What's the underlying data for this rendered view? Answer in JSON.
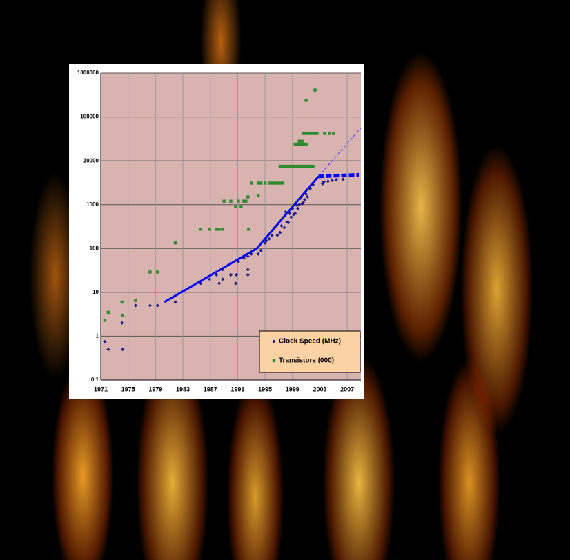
{
  "chart_data": {
    "type": "scatter",
    "log_y": true,
    "grid": true,
    "legend": "lower right",
    "xlim": [
      1971,
      2009
    ],
    "xticks": [
      1971,
      1975,
      1979,
      1983,
      1987,
      1991,
      1995,
      1999,
      2003,
      2007
    ],
    "ylim": [
      0.1,
      1000000
    ],
    "yticks": [
      1000000,
      100000,
      10000,
      1000,
      100,
      10,
      1,
      0.1
    ],
    "series": [
      {
        "name": "Clock Speed (MHz)",
        "color": "#1a1a8c",
        "marker": "diamond",
        "x": [
          1971.6,
          1972.1,
          1974.1,
          1974.2,
          1976.1,
          1978.2,
          1979.3,
          1981.9,
          1985.6,
          1986.9,
          1987.9,
          1988.3,
          1988.8,
          1988.8,
          1990,
          1990.7,
          1990.8,
          1991.1,
          1991.9,
          1992.5,
          1992.5,
          1992.5,
          1993,
          1994,
          1994.4,
          1995,
          1995.2,
          1995.6,
          1996,
          1996.4,
          1996.8,
          1997.2,
          1997.4,
          1997.6,
          1997.8,
          1998,
          1998.2,
          1998.4,
          1998.6,
          1998.8,
          1999,
          1999.2,
          1999.4,
          1999.6,
          1999.8,
          2000,
          2000.2,
          2000.4,
          2000.6,
          2000.8,
          2001,
          2001.2,
          2001.6,
          2002,
          2003.4,
          2003.6,
          2004.2,
          2004.8,
          2005.4,
          2006.4
        ],
        "values": [
          0.75,
          0.5,
          2,
          0.5,
          5,
          5,
          5,
          6,
          16,
          20,
          25,
          16,
          20,
          33,
          25,
          16,
          25,
          50,
          60,
          25,
          33,
          66,
          75,
          75,
          90,
          133,
          150,
          166,
          200,
          300,
          200,
          230,
          330,
          500,
          300,
          680,
          400,
          390,
          630,
          520,
          810,
          600,
          630,
          980,
          820,
          1000,
          1400,
          1040,
          1110,
          1290,
          1730,
          1500,
          2320,
          2860,
          3000,
          3300,
          3400,
          3600,
          3700,
          3800
        ]
      },
      {
        "name": "Transistors (000)",
        "color": "#2e8b2e",
        "marker": "square",
        "x": [
          1971.6,
          1972.1,
          1974.1,
          1974.2,
          1976.1,
          1978.2,
          1979.3,
          1981.9,
          1985.6,
          1986.9,
          1987.9,
          1988.3,
          1988.8,
          1989,
          1990,
          1990.7,
          1991.1,
          1991.5,
          1991.9,
          1992.2,
          1992.5,
          1992.6,
          1993,
          1994,
          1994,
          1994.4,
          1995,
          1995.6,
          1996,
          1996.4,
          1996.8,
          1997.2,
          1997.6,
          1997.2,
          1997.6,
          1998,
          1998.4,
          1998.8,
          1999.2,
          1999.6,
          2000,
          2000.4,
          2000.8,
          2001.2,
          2001.6,
          2002,
          1999.4,
          1999.8,
          2000.2,
          2000.6,
          2001,
          2000,
          2000.4,
          2000.6,
          2001,
          2001.4,
          2001.8,
          2002.2,
          2002.6,
          2001,
          2002.3,
          2003.7,
          2004.4,
          2005
        ],
        "values": [
          2.3,
          3.5,
          6,
          3,
          6.5,
          29,
          29,
          134,
          275,
          275,
          275,
          275,
          275,
          1200,
          1200,
          900,
          1200,
          900,
          1200,
          1200,
          1500,
          275,
          3100,
          1600,
          3100,
          3100,
          3100,
          3100,
          3100,
          3100,
          3100,
          3100,
          3100,
          7500,
          7500,
          7500,
          7500,
          7500,
          7500,
          7500,
          7500,
          7500,
          7500,
          7500,
          7500,
          7500,
          24000,
          24000,
          24000,
          24000,
          24000,
          28000,
          28000,
          42000,
          42000,
          42000,
          42000,
          42000,
          42000,
          240000,
          410000,
          42000,
          42000,
          42000
        ]
      }
    ],
    "trend_lines": [
      {
        "color": "#0000ff",
        "style": "solid",
        "x": [
          1980.3,
          1993.8,
          2002.8
        ],
        "values": [
          6,
          100,
          4400
        ]
      },
      {
        "color": "#4040ff",
        "style": "dashed",
        "x": [
          2002.8,
          2009
        ],
        "values": [
          4400,
          56000
        ]
      },
      {
        "color": "#0000ff",
        "style": "thick-dashed",
        "x": [
          2002.8,
          2008.7
        ],
        "values": [
          4400,
          4800
        ]
      }
    ]
  }
}
